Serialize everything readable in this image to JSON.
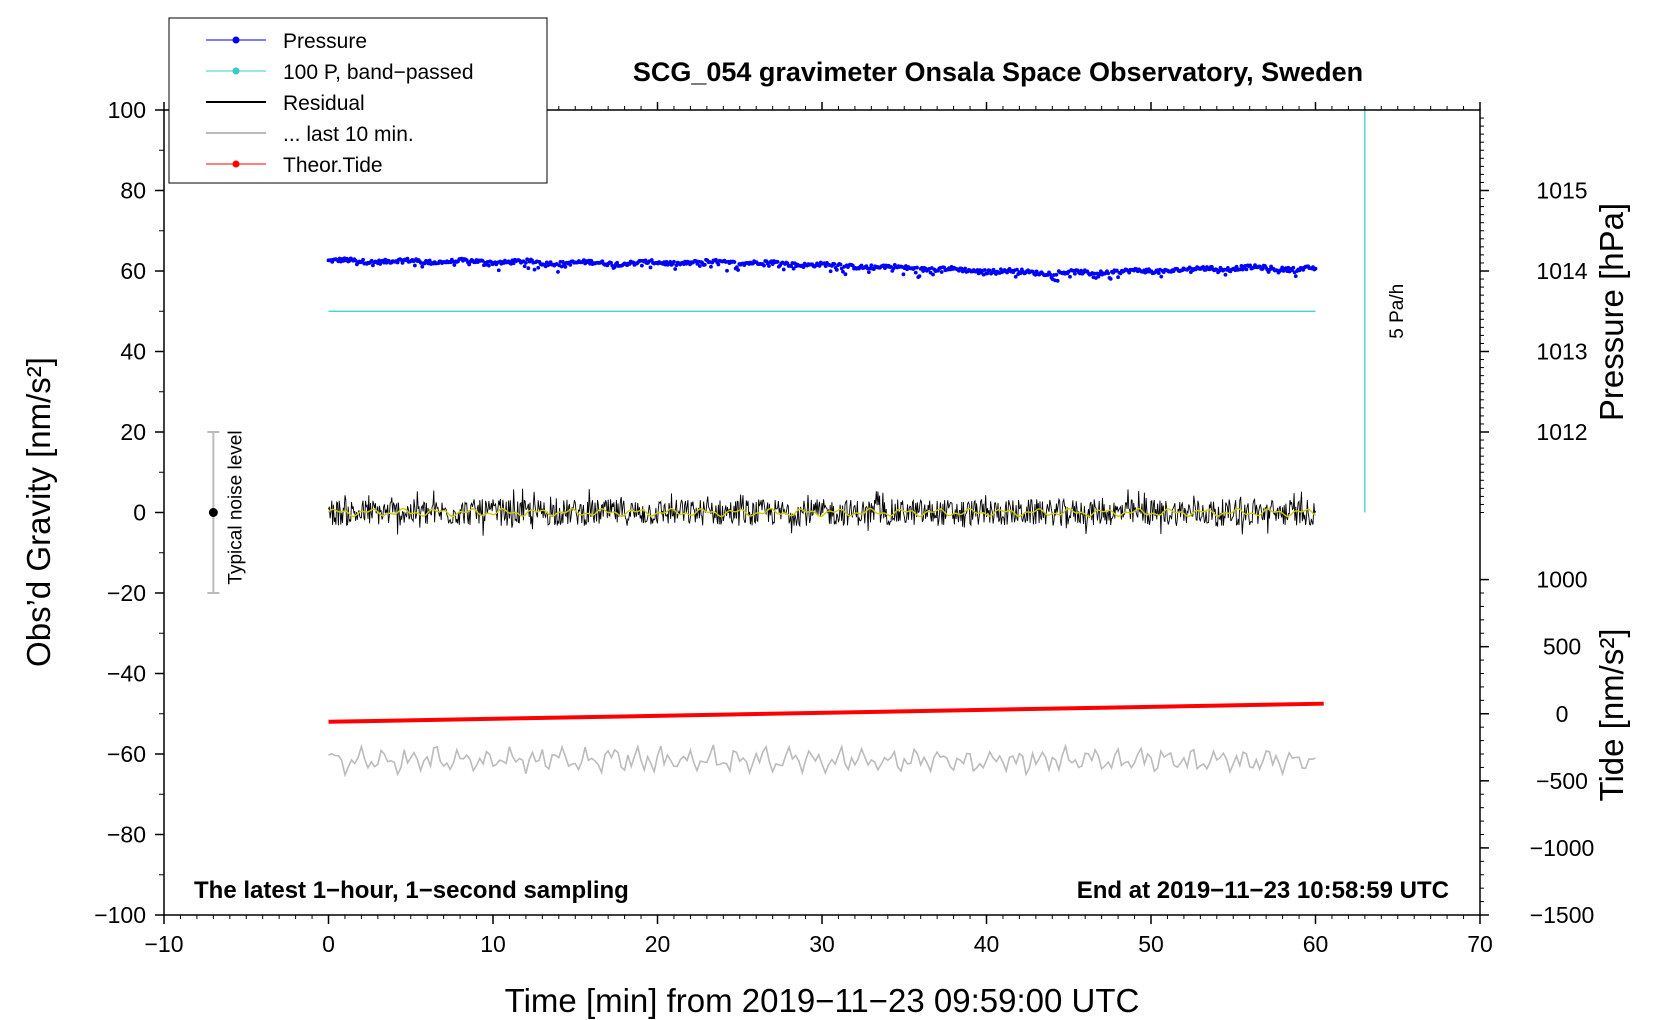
{
  "chart_data": {
    "type": "line",
    "title": "SCG_054 gravimeter Onsala Space Observatory, Sweden",
    "xlabel": "Time [min] from 2019−11−23 09:59:00 UTC",
    "ylabel_left": "Obs’d Gravity [nm/s²]",
    "ylabel_right_pressure": "Pressure [hPa]",
    "ylabel_right_tide": "Tide [nm/s²]",
    "xlim": [
      -10,
      70
    ],
    "ylim": [
      -100,
      100
    ],
    "x_ticks": [
      "−10",
      "0",
      "10",
      "20",
      "30",
      "40",
      "50",
      "60",
      "70"
    ],
    "y_ticks": [
      "100",
      "80",
      "60",
      "40",
      "20",
      "0",
      "−20",
      "−40",
      "−60",
      "−80",
      "−100"
    ],
    "pressure_ticks": [
      "1015",
      "1014",
      "1013",
      "1012"
    ],
    "pressure_tick_values": [
      1015,
      1014,
      1013,
      1012
    ],
    "pressure_axis": {
      "ref_value": 1014,
      "ref_gravity": 60,
      "gravity_per_hPa": 20
    },
    "tide_ticks": [
      "1000",
      "500",
      "0",
      "−500",
      "−1000",
      "−1500"
    ],
    "tide_tick_values": [
      1000,
      500,
      0,
      -500,
      -1000,
      -1500
    ],
    "tide_axis": {
      "ref_value": 0,
      "ref_gravity": -50,
      "gravity_per_unit": 0.033333
    },
    "legend": {
      "position": "top-left",
      "entries": [
        {
          "label": "Pressure",
          "color": "#0000ff",
          "marker": "dot"
        },
        {
          "label": "100 P, band−passed",
          "color": "#33cccc",
          "marker": "dot"
        },
        {
          "label": "Residual",
          "color": "#000000",
          "marker": "none"
        },
        {
          "label": "... last 10 min.",
          "color": "#bbbbbb",
          "marker": "none"
        },
        {
          "label": "Theor.Tide",
          "color": "#ff0000",
          "marker": "dot"
        }
      ]
    },
    "series": [
      {
        "name": "Pressure",
        "color": "#0000ff",
        "x": [
          0,
          10,
          15,
          20,
          25,
          30,
          35,
          40,
          45,
          50,
          55,
          60
        ],
        "y": [
          62.5,
          62.3,
          62.0,
          62.0,
          62.2,
          61.5,
          60.8,
          60.0,
          59.5,
          60.0,
          60.8,
          60.5
        ]
      },
      {
        "name": "100 P, band-passed",
        "color": "#33cccc",
        "x": [
          0,
          60
        ],
        "y": [
          50,
          50
        ]
      },
      {
        "name": "Residual",
        "color": "#000000",
        "x": [
          0,
          60
        ],
        "y": [
          0,
          0
        ],
        "amplitude": 6
      },
      {
        "name": "Residual smoothed",
        "color": "#cccc00",
        "x": [
          0,
          60
        ],
        "y": [
          0,
          0
        ]
      },
      {
        "name": "... last 10 min.",
        "color": "#bbbbbb",
        "x": [
          0,
          60
        ],
        "y": [
          -61.5,
          -61.5
        ],
        "amplitude": 5
      },
      {
        "name": "Theor.Tide",
        "color": "#ff0000",
        "x": [
          0,
          60.5
        ],
        "y": [
          -52,
          -47.5
        ]
      }
    ],
    "noise_bar": {
      "x": -7,
      "center": 0,
      "low": -20,
      "high": 20,
      "label": "Typical noise level"
    },
    "rate_bar": {
      "x": 63,
      "low": 0,
      "high": 100,
      "label": "5 Pa/h"
    },
    "annotations": {
      "bottom_left": "The latest 1−hour, 1−second sampling",
      "bottom_right": "End at 2019−11−23 10:58:59 UTC"
    }
  }
}
